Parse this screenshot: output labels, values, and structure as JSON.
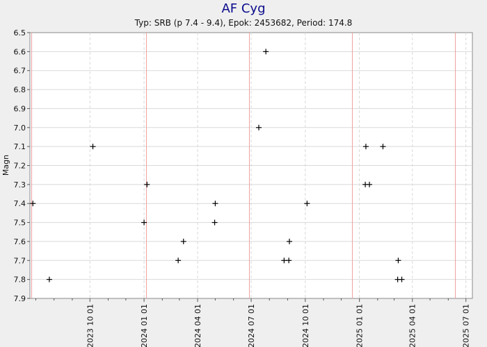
{
  "chart_data": {
    "type": "scatter",
    "title": "AF Cyg",
    "subtitle": "Typ: SRB (p 7.4 - 9.4), Epok: 2453682, Period: 174.8",
    "ylabel": "Magn",
    "xlabel": "",
    "ylim": [
      6.5,
      7.9
    ],
    "y_inverted": true,
    "y_ticks": [
      6.5,
      6.6,
      6.7,
      6.8,
      6.9,
      7.0,
      7.1,
      7.2,
      7.3,
      7.4,
      7.5,
      7.6,
      7.7,
      7.8,
      7.9
    ],
    "y_tick_labels": [
      "6.5",
      "6.6",
      "6.7",
      "6.8",
      "6.9",
      "7.0",
      "7.1",
      "7.2",
      "7.3",
      "7.4",
      "7.5",
      "7.6",
      "7.7",
      "7.8",
      "7.9"
    ],
    "xlim": [
      "2023-06-21",
      "2025-07-12"
    ],
    "x_ticks": [
      "2023-10-01",
      "2024-01-01",
      "2024-04-01",
      "2024-07-01",
      "2024-10-01",
      "2025-01-01",
      "2025-04-01",
      "2025-07-01"
    ],
    "x_tick_labels": [
      "2023 10 01",
      "2024 01 01",
      "2024 04 01",
      "2024 07 01",
      "2024 10 01",
      "2025 01 01",
      "2025 04 01",
      "2025 07 01"
    ],
    "x_minor_ticks": [
      "2023-07-01",
      "2023-08-01",
      "2023-09-01",
      "2023-11-01",
      "2023-12-01",
      "2024-02-01",
      "2024-03-01",
      "2024-05-01",
      "2024-06-01",
      "2024-08-01",
      "2024-09-01",
      "2024-11-01",
      "2024-12-01",
      "2025-02-01",
      "2025-03-01",
      "2025-05-01",
      "2025-06-01"
    ],
    "grid": true,
    "marker": "+",
    "marker_color": "#000000",
    "grid_color": "#d9d9d9",
    "epoch_line_color": "#f0a0a0",
    "epoch_lines": [
      "2023-06-24",
      "2024-01-05",
      "2024-06-28",
      "2024-12-20",
      "2025-06-13"
    ],
    "points": [
      {
        "x": "2023-06-26",
        "y": 7.4
      },
      {
        "x": "2023-07-24",
        "y": 7.8
      },
      {
        "x": "2023-10-06",
        "y": 7.1
      },
      {
        "x": "2024-01-01",
        "y": 7.5
      },
      {
        "x": "2024-01-06",
        "y": 7.3
      },
      {
        "x": "2024-02-28",
        "y": 7.7
      },
      {
        "x": "2024-03-08",
        "y": 7.6
      },
      {
        "x": "2024-04-30",
        "y": 7.5
      },
      {
        "x": "2024-05-01",
        "y": 7.4
      },
      {
        "x": "2024-07-14",
        "y": 7.0
      },
      {
        "x": "2024-07-26",
        "y": 6.6
      },
      {
        "x": "2024-08-26",
        "y": 7.7
      },
      {
        "x": "2024-09-03",
        "y": 7.7
      },
      {
        "x": "2024-09-04",
        "y": 7.6
      },
      {
        "x": "2024-10-04",
        "y": 7.4
      },
      {
        "x": "2025-01-11",
        "y": 7.3
      },
      {
        "x": "2025-01-12",
        "y": 7.1
      },
      {
        "x": "2025-01-18",
        "y": 7.3
      },
      {
        "x": "2025-02-10",
        "y": 7.1
      },
      {
        "x": "2025-03-07",
        "y": 7.8
      },
      {
        "x": "2025-03-08",
        "y": 7.7
      },
      {
        "x": "2025-03-14",
        "y": 7.8
      }
    ]
  }
}
